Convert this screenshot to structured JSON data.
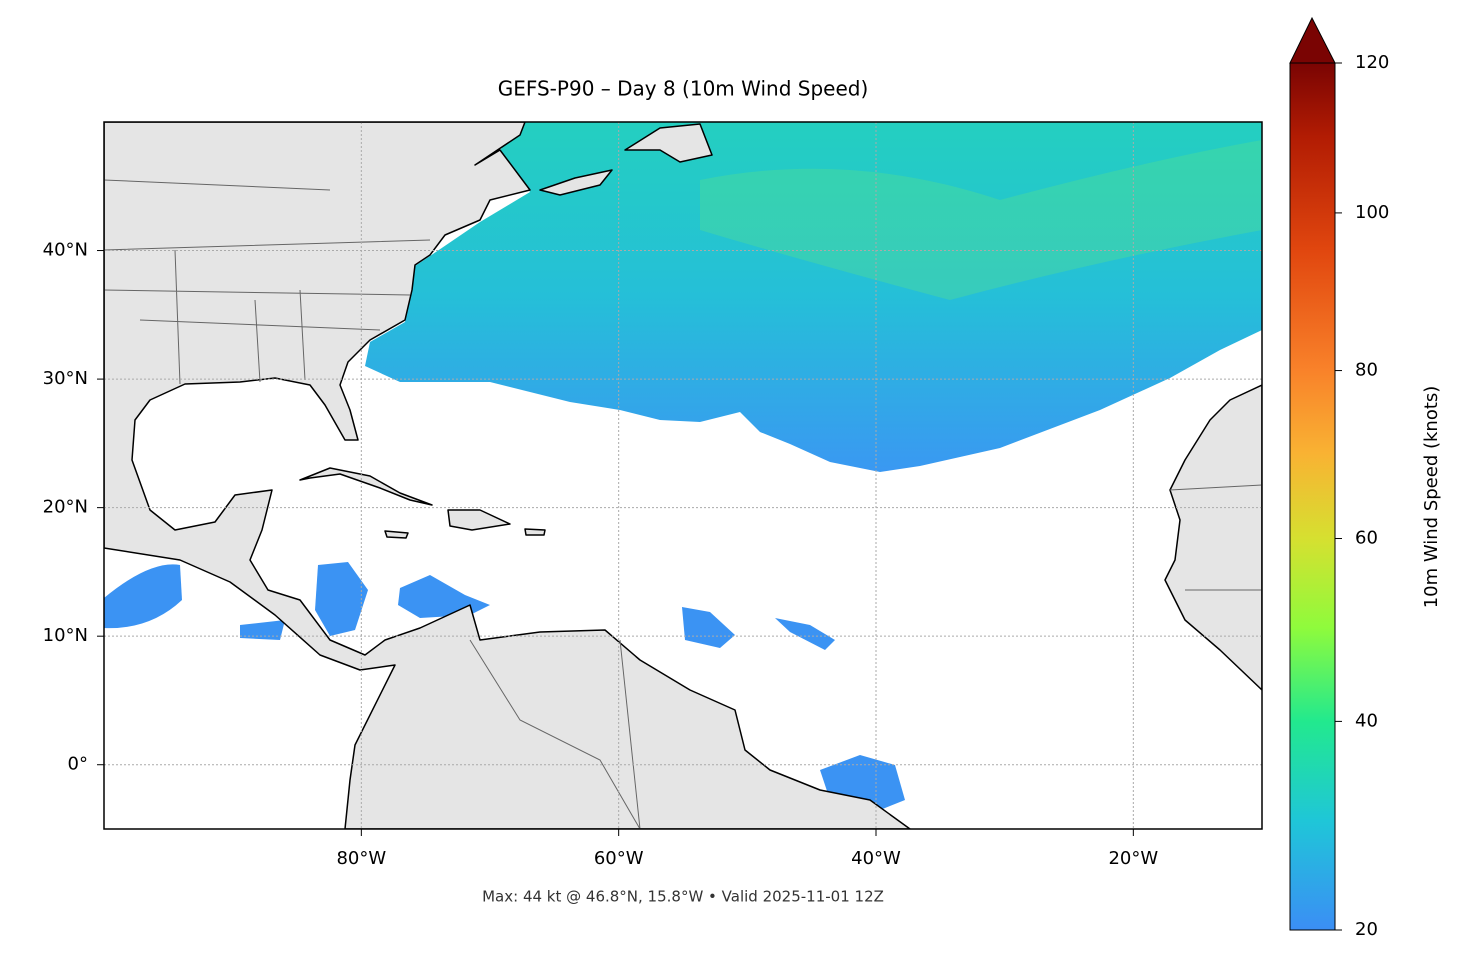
{
  "title": "GEFS-P90 – Day 8 (10m Wind Speed)",
  "map": {
    "lonlim": [
      -100,
      -10
    ],
    "latlim": [
      -5,
      50
    ],
    "grid": true,
    "lon_ticks": [
      {
        "value": -80,
        "label": "80°W"
      },
      {
        "value": -60,
        "label": "60°W"
      },
      {
        "value": -40,
        "label": "40°W"
      },
      {
        "value": -20,
        "label": "20°W"
      }
    ],
    "lat_ticks": [
      {
        "value": 40,
        "label": "40°N"
      },
      {
        "value": 30,
        "label": "30°N"
      },
      {
        "value": 20,
        "label": "20°N"
      },
      {
        "value": 10,
        "label": "10°N"
      },
      {
        "value": 0,
        "label": "0°"
      }
    ]
  },
  "colorbar": {
    "label": "10m Wind Speed (knots)",
    "lim": [
      20,
      120
    ],
    "ticks": [
      20,
      40,
      60,
      80,
      100,
      120
    ],
    "norm": {
      "type": "power",
      "gamma": 0.75
    },
    "stops": [
      [
        20,
        "#3b8ef5"
      ],
      [
        30,
        "#1fc6d8"
      ],
      [
        40,
        "#22e98e"
      ],
      [
        50,
        "#8ffb3c"
      ],
      [
        60,
        "#d6e030"
      ],
      [
        70,
        "#f9b233"
      ],
      [
        80,
        "#f9822a"
      ],
      [
        95,
        "#e1470f"
      ],
      [
        110,
        "#b21c03"
      ],
      [
        120,
        "#7a0403"
      ]
    ],
    "extend_color": "#7a0403"
  },
  "footer": "Max: 44 kt @ 46.8°N, 15.8°W • Valid 2025-11-01 12Z"
}
